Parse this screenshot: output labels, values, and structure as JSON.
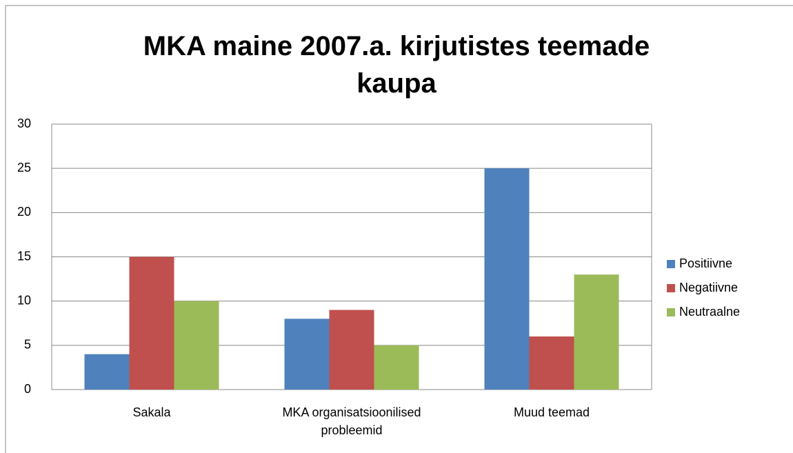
{
  "chart_data": {
    "type": "bar",
    "title": "MKA maine 2007.a. kirjutistes teemade kaupa",
    "categories": [
      "Sakala",
      "MKA organisatsioonilised probleemid",
      "Muud teemad"
    ],
    "series": [
      {
        "name": "Positiivne",
        "color": "#4f81bd",
        "values": [
          4,
          8,
          25
        ]
      },
      {
        "name": "Negatiivne",
        "color": "#c0504d",
        "values": [
          15,
          9,
          6
        ]
      },
      {
        "name": "Neutraalne",
        "color": "#9bbb59",
        "values": [
          10,
          5,
          13
        ]
      }
    ],
    "ylim": [
      0,
      30
    ],
    "yticks": [
      0,
      5,
      10,
      15,
      20,
      25,
      30
    ],
    "grid": true,
    "legend": "right"
  }
}
